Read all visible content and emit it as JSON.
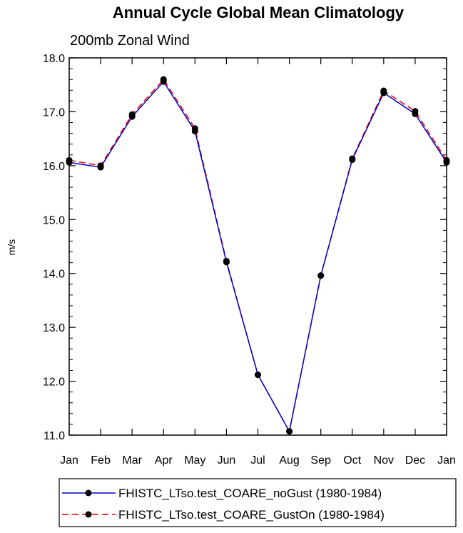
{
  "chart_data": {
    "type": "line",
    "title": "Annual Cycle Global Mean Climatology",
    "subtitle": "200mb Zonal Wind",
    "xlabel": "",
    "ylabel": "m/s",
    "ylim": [
      11.0,
      18.0
    ],
    "y_ticks": [
      "11.0",
      "12.0",
      "13.0",
      "14.0",
      "15.0",
      "16.0",
      "17.0",
      "18.0"
    ],
    "categories": [
      "Jan",
      "Feb",
      "Mar",
      "Apr",
      "May",
      "Jun",
      "Jul",
      "Aug",
      "Sep",
      "Oct",
      "Nov",
      "Dec",
      "Jan"
    ],
    "grid": false,
    "legend_position": "bottom",
    "series": [
      {
        "name": "FHISTC_LTso.test_COARE_noGust (1980-1984)",
        "color": "#0000cc",
        "dash": "solid",
        "marker": "filled-circle",
        "values": [
          16.06,
          15.97,
          16.91,
          17.56,
          16.64,
          14.21,
          12.12,
          11.07,
          13.96,
          16.11,
          17.35,
          16.96,
          16.06
        ]
      },
      {
        "name": "FHISTC_LTso.test_COARE_GustOn (1980-1984)",
        "color": "#ee0000",
        "dash": "dashed",
        "marker": "filled-circle",
        "values": [
          16.1,
          16.0,
          16.95,
          17.6,
          16.69,
          14.23,
          12.12,
          11.07,
          13.96,
          16.13,
          17.39,
          17.01,
          16.1
        ]
      }
    ]
  }
}
